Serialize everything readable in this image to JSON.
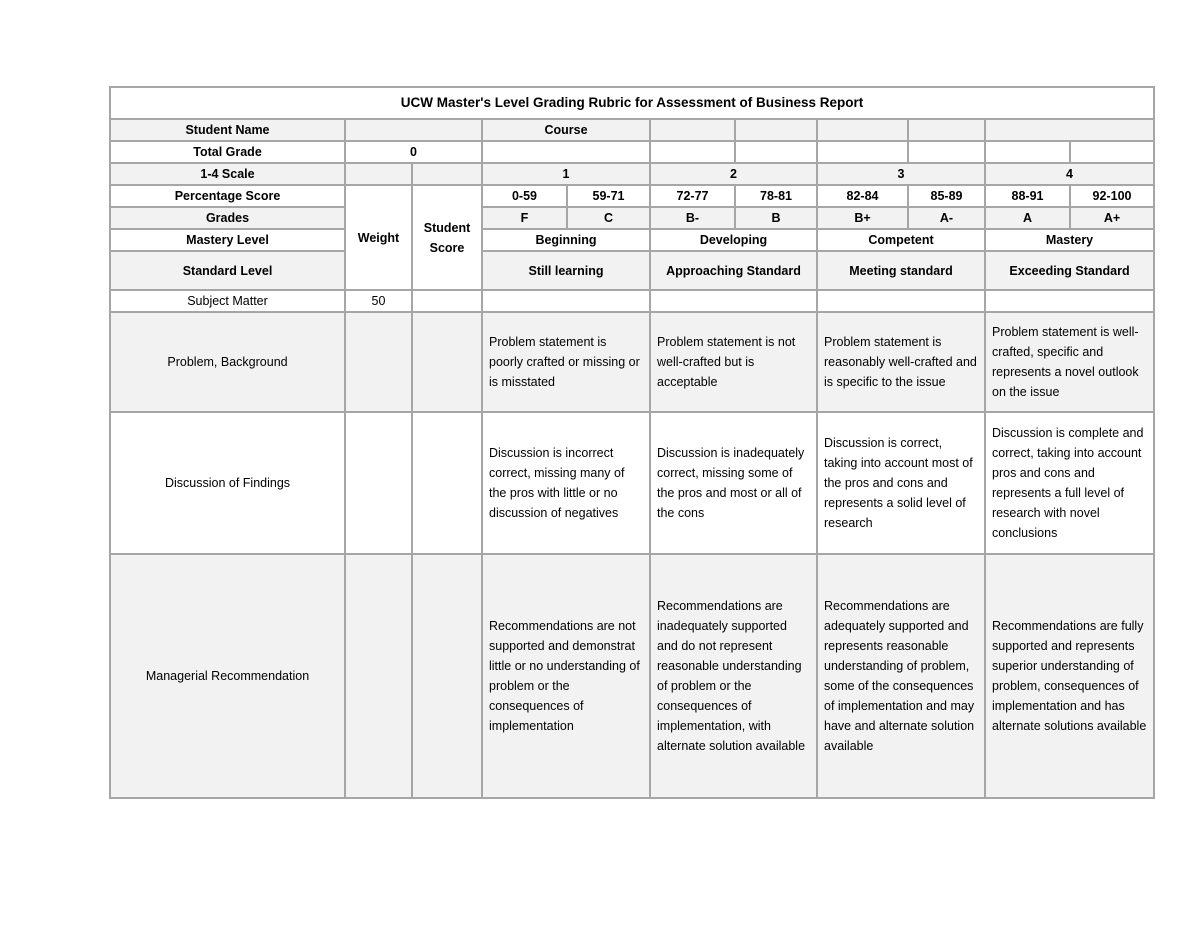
{
  "title": "UCW Master's Level Grading Rubric for Assessment of Business Report",
  "header": {
    "student_name_label": "Student Name",
    "course_label": "Course",
    "total_grade_label": "Total Grade",
    "total_grade_value": "0",
    "scale_label": "1-4 Scale",
    "percentage_label": "Percentage Score",
    "grades_label": "Grades",
    "mastery_label": "Mastery Level",
    "standard_label": "Standard Level",
    "weight_label": "Weight",
    "student_score_label": "Student Score",
    "scale": [
      "1",
      "2",
      "3",
      "4"
    ],
    "percentages": [
      "0-59",
      "59-71",
      "72-77",
      "78-81",
      "82-84",
      "85-89",
      "88-91",
      "92-100"
    ],
    "grades": [
      "F",
      "C",
      "B-",
      "B",
      "B+",
      "A-",
      "A",
      "A+"
    ],
    "mastery": [
      "Beginning",
      "Developing",
      "Competent",
      "Mastery"
    ],
    "standard": [
      "Still learning",
      "Approaching Standard",
      "Meeting standard",
      "Exceeding Standard"
    ]
  },
  "criteria": [
    {
      "name": "Subject Matter",
      "weight": "50",
      "levels": [
        "",
        "",
        "",
        ""
      ]
    },
    {
      "name": "Problem, Background",
      "weight": "",
      "levels": [
        "Problem statement is poorly crafted or missing or is misstated",
        "Problem statement is not well-crafted but is acceptable",
        "Problem statement is reasonably well-crafted and is specific to the issue",
        "Problem statement is well-crafted, specific and represents a novel outlook on the issue"
      ]
    },
    {
      "name": "Discussion of Findings",
      "weight": "",
      "levels": [
        "Discussion is incorrect correct, missing many of the pros with little or no discussion of negatives",
        "Discussion is inadequately correct, missing some of the pros and most or all of the cons",
        "Discussion is correct, taking into account most of the pros and cons and represents a solid level of research",
        "Discussion is complete and correct, taking into account pros and cons and represents a full level of research with novel conclusions"
      ]
    },
    {
      "name": "Managerial Recommendation",
      "weight": "",
      "levels": [
        "Recommendations are not supported and demonstrat little or no understanding of problem or the consequences of implementation",
        "Recommendations are inadequately supported and do not represent reasonable understanding of problem or the consequences of implementation, with alternate solution available",
        "Recommendations are adequately supported and represents reasonable understanding of problem, some of the consequences of implementation and may have and alternate solution available",
        "Recommendations are fully supported and represents superior understanding of problem, consequences of implementation and has alternate solutions available"
      ]
    }
  ]
}
